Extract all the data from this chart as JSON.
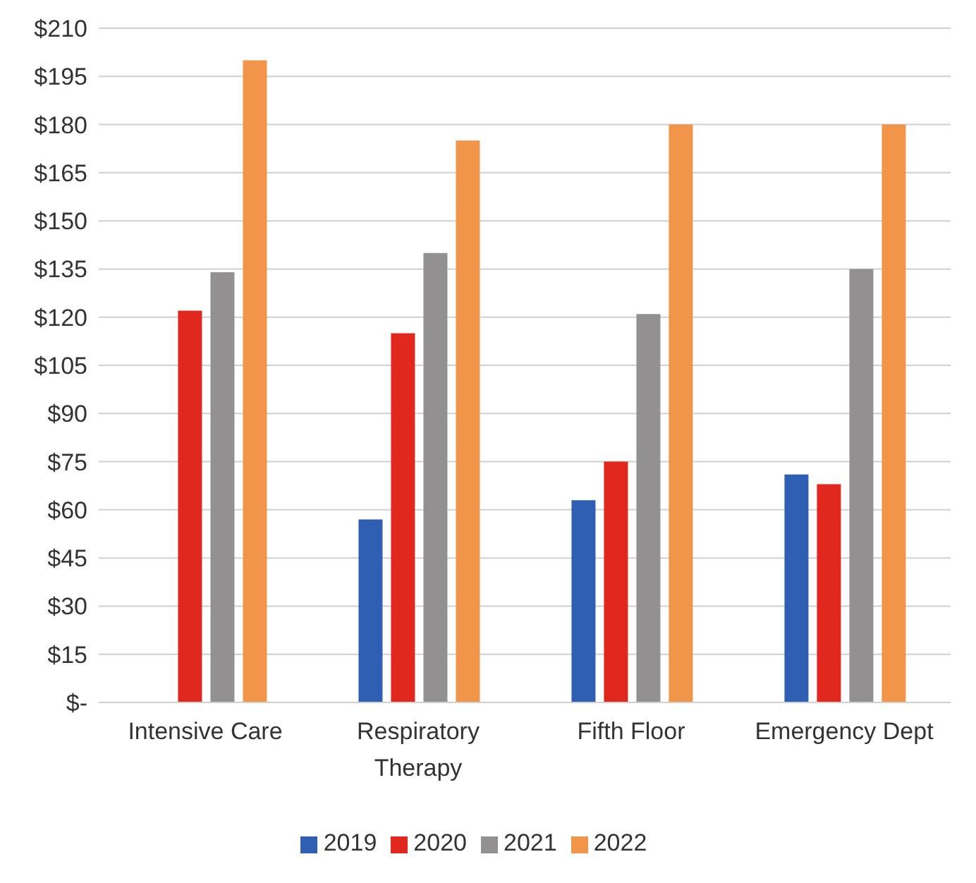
{
  "chart_data": {
    "type": "bar",
    "categories": [
      "Intensive Care",
      "Respiratory Therapy",
      "Fifth Floor",
      "Emergency Dept"
    ],
    "series": [
      {
        "name": "2019",
        "color": "#2f5fb3",
        "values": [
          null,
          57,
          63,
          71
        ]
      },
      {
        "name": "2020",
        "color": "#e0281e",
        "values": [
          122,
          115,
          75,
          68
        ]
      },
      {
        "name": "2021",
        "color": "#929090",
        "values": [
          134,
          140,
          121,
          135
        ]
      },
      {
        "name": "2022",
        "color": "#f0954a",
        "values": [
          200,
          175,
          180,
          180
        ]
      }
    ],
    "ylim": [
      0,
      210
    ],
    "yticks": [
      {
        "value": 0,
        "label": "$-"
      },
      {
        "value": 15,
        "label": "$15"
      },
      {
        "value": 30,
        "label": "$30"
      },
      {
        "value": 45,
        "label": "$45"
      },
      {
        "value": 60,
        "label": "$60"
      },
      {
        "value": 75,
        "label": "$75"
      },
      {
        "value": 90,
        "label": "$90"
      },
      {
        "value": 105,
        "label": "$105"
      },
      {
        "value": 120,
        "label": "$120"
      },
      {
        "value": 135,
        "label": "$135"
      },
      {
        "value": 150,
        "label": "$150"
      },
      {
        "value": 165,
        "label": "$165"
      },
      {
        "value": 180,
        "label": "$180"
      },
      {
        "value": 195,
        "label": "$195"
      },
      {
        "value": 210,
        "label": "$210"
      }
    ],
    "grid": "y",
    "legend": "bottom"
  }
}
